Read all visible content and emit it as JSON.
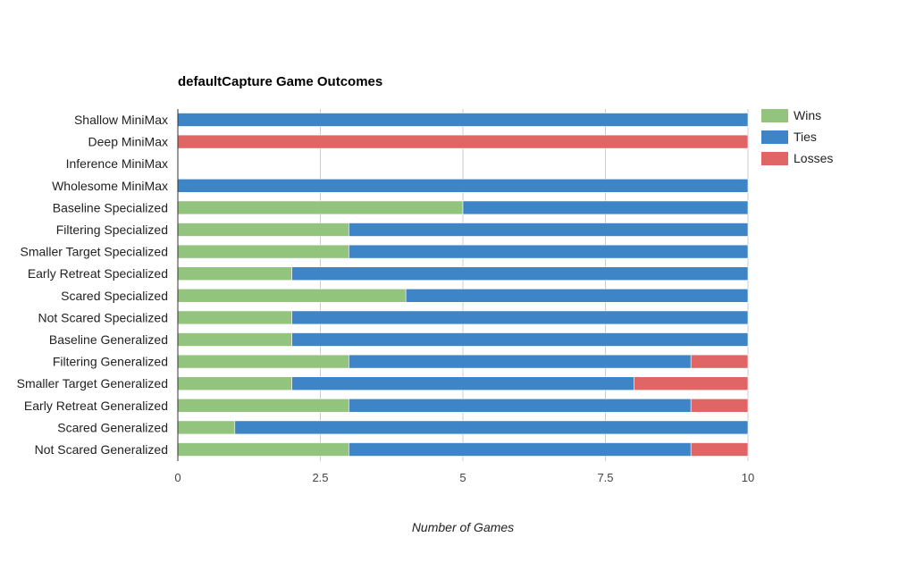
{
  "chart_data": {
    "type": "bar",
    "orientation": "horizontal",
    "stacked": true,
    "title": "defaultCapture Game Outcomes",
    "xlabel": "Number of Games",
    "ylabel": "",
    "xlim": [
      0,
      10
    ],
    "xticks": [
      "0",
      "2.5",
      "5",
      "7.5",
      "10"
    ],
    "grid": true,
    "legend_position": "right",
    "categories": [
      "Shallow MiniMax",
      "Deep MiniMax",
      "Inference MiniMax",
      "Wholesome MiniMax",
      "Baseline Specialized",
      "Filtering Specialized",
      "Smaller Target Specialized",
      "Early Retreat Specialized",
      "Scared Specialized",
      "Not Scared Specialized",
      "Baseline Generalized",
      "Filtering Generalized",
      "Smaller Target Generalized",
      "Early Retreat Generalized",
      "Scared Generalized",
      "Not Scared Generalized"
    ],
    "series": [
      {
        "name": "Wins",
        "color": "#93c47d",
        "values": [
          0,
          0,
          0,
          0,
          5,
          3,
          3,
          2,
          4,
          2,
          2,
          3,
          2,
          3,
          1,
          3
        ]
      },
      {
        "name": "Ties",
        "color": "#3d85c6",
        "values": [
          10,
          0,
          0,
          10,
          5,
          7,
          7,
          8,
          6,
          8,
          8,
          6,
          6,
          6,
          9,
          6
        ]
      },
      {
        "name": "Losses",
        "color": "#e06666",
        "values": [
          0,
          10,
          0,
          0,
          0,
          0,
          0,
          0,
          0,
          0,
          0,
          1,
          2,
          1,
          0,
          1
        ]
      }
    ]
  }
}
